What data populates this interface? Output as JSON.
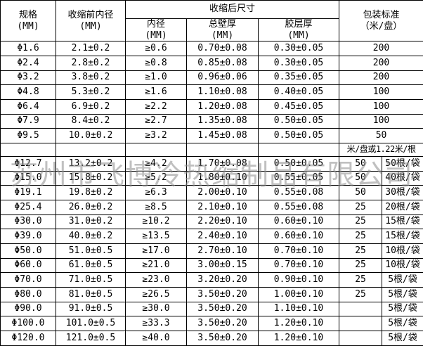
{
  "watermark": "苏州市飞博冷热缩制品有限公司",
  "table": {
    "headers": {
      "spec": {
        "line1": "规格",
        "line2": "(MM)"
      },
      "pre": {
        "line1": "收缩前内径",
        "line2": "(MM)"
      },
      "group": "收缩后尺寸",
      "inner": {
        "line1": "内径",
        "line2": "(MM)"
      },
      "wall": {
        "line1": "总壁厚",
        "line2": "(MM)"
      },
      "glue": {
        "line1": "胶层厚",
        "line2": "(MM)"
      },
      "pack": {
        "line1": "包装标准",
        "line2": "（米/盘）"
      }
    },
    "body_rows": [
      {
        "cells": [
          {
            "t": "Φ1.6"
          },
          {
            "t": "2.1±0.2"
          },
          {
            "t": "≥0.6"
          },
          {
            "t": "0.70±0.08"
          },
          {
            "t": "0.30±0.05"
          },
          {
            "t": "200",
            "span": 2
          }
        ]
      },
      {
        "cells": [
          {
            "t": "Φ2.4"
          },
          {
            "t": "2.8±0.2"
          },
          {
            "t": "≥0.8"
          },
          {
            "t": "0.85±0.08"
          },
          {
            "t": "0.30±0.05"
          },
          {
            "t": "200",
            "span": 2
          }
        ]
      },
      {
        "cells": [
          {
            "t": "Φ3.2"
          },
          {
            "t": "3.8±0.2"
          },
          {
            "t": "≥1.0"
          },
          {
            "t": "0.96±0.06"
          },
          {
            "t": "0.35±0.05"
          },
          {
            "t": "200",
            "span": 2
          }
        ]
      },
      {
        "cells": [
          {
            "t": "Φ4.8"
          },
          {
            "t": "5.3±0.2"
          },
          {
            "t": "≥1.6"
          },
          {
            "t": "1.10±0.08"
          },
          {
            "t": "0.40±0.05"
          },
          {
            "t": "100",
            "span": 2
          }
        ]
      },
      {
        "cells": [
          {
            "t": "Φ6.4"
          },
          {
            "t": "6.9±0.2"
          },
          {
            "t": "≥2.2"
          },
          {
            "t": "1.20±0.08"
          },
          {
            "t": "0.45±0.05"
          },
          {
            "t": "100",
            "span": 2
          }
        ]
      },
      {
        "cells": [
          {
            "t": "Φ7.9"
          },
          {
            "t": "8.4±0.2"
          },
          {
            "t": "≥2.7"
          },
          {
            "t": "1.35±0.08"
          },
          {
            "t": "0.50±0.05"
          },
          {
            "t": "100",
            "span": 2
          }
        ]
      },
      {
        "cells": [
          {
            "t": "Φ9.5"
          },
          {
            "t": "10.0±0.2"
          },
          {
            "t": "≥3.2"
          },
          {
            "t": "1.45±0.08"
          },
          {
            "t": "0.50±0.05"
          },
          {
            "t": "50",
            "span": 2
          }
        ]
      },
      {
        "cells": [
          {
            "t": ""
          },
          {
            "t": ""
          },
          {
            "t": ""
          },
          {
            "t": ""
          },
          {
            "t": ""
          },
          {
            "t": "米/盘或1.22米/根",
            "span": 2,
            "cls": "note"
          }
        ]
      },
      {
        "cells": [
          {
            "t": "Φ12.7"
          },
          {
            "t": "13.2±0.2"
          },
          {
            "t": "≥4.2"
          },
          {
            "t": "1.70±0.08"
          },
          {
            "t": "0.50±0.05"
          },
          {
            "t": "50"
          },
          {
            "t": "50根/袋"
          }
        ]
      },
      {
        "cells": [
          {
            "t": "Φ15.0"
          },
          {
            "t": "15.8±0.2"
          },
          {
            "t": "≥5.2"
          },
          {
            "t": "1.80±0.10"
          },
          {
            "t": "0.55±0.05"
          },
          {
            "t": "50"
          },
          {
            "t": "40根/袋"
          }
        ]
      },
      {
        "cells": [
          {
            "t": "Φ19.1"
          },
          {
            "t": "19.8±0.2"
          },
          {
            "t": "≥6.3"
          },
          {
            "t": "2.00±0.10"
          },
          {
            "t": "0.55±0.08"
          },
          {
            "t": "50"
          },
          {
            "t": "30根/袋"
          }
        ]
      },
      {
        "cells": [
          {
            "t": "Φ25.4"
          },
          {
            "t": "26.0±0.2"
          },
          {
            "t": "≥8.5"
          },
          {
            "t": "2.10±0.10"
          },
          {
            "t": "0.55±0.08"
          },
          {
            "t": "25"
          },
          {
            "t": "20根/袋"
          }
        ]
      },
      {
        "cells": [
          {
            "t": "Φ30.0"
          },
          {
            "t": "31.0±0.2"
          },
          {
            "t": "≥10.2"
          },
          {
            "t": "2.20±0.10"
          },
          {
            "t": "0.60±0.10"
          },
          {
            "t": "25"
          },
          {
            "t": "15根/袋"
          }
        ]
      },
      {
        "cells": [
          {
            "t": "Φ39.0"
          },
          {
            "t": "40.0±0.2"
          },
          {
            "t": "≥13.5"
          },
          {
            "t": "2.40±0.10"
          },
          {
            "t": "0.60±0.10"
          },
          {
            "t": "25"
          },
          {
            "t": "15根/袋"
          }
        ]
      },
      {
        "cells": [
          {
            "t": "Φ50.0"
          },
          {
            "t": "51.0±0.5"
          },
          {
            "t": "≥17.0"
          },
          {
            "t": "2.70±0.10"
          },
          {
            "t": "0.70±0.10"
          },
          {
            "t": "25"
          },
          {
            "t": "10根/袋"
          }
        ]
      },
      {
        "cells": [
          {
            "t": "Φ60.0"
          },
          {
            "t": "61.0±0.5"
          },
          {
            "t": "≥21.0"
          },
          {
            "t": "3.00±0.15"
          },
          {
            "t": "0.70±0.10"
          },
          {
            "t": "25"
          },
          {
            "t": "10根/袋"
          }
        ]
      },
      {
        "cells": [
          {
            "t": "Φ70.0"
          },
          {
            "t": "71.0±0.5"
          },
          {
            "t": "≥23.0"
          },
          {
            "t": "3.20±0.20"
          },
          {
            "t": "0.90±0.10"
          },
          {
            "t": "25"
          },
          {
            "t": "5根/袋"
          }
        ]
      },
      {
        "cells": [
          {
            "t": "Φ80.0"
          },
          {
            "t": "81.0±0.5"
          },
          {
            "t": "≥26.5"
          },
          {
            "t": "3.50±0.20"
          },
          {
            "t": "1.00±0.10"
          },
          {
            "t": "25"
          },
          {
            "t": "5根/袋"
          }
        ]
      },
      {
        "cells": [
          {
            "t": "Φ90.0"
          },
          {
            "t": "91.0±0.5"
          },
          {
            "t": "≥30.0"
          },
          {
            "t": "3.50±0.20"
          },
          {
            "t": "1.10±0.10"
          },
          {
            "t": ""
          },
          {
            "t": "5根/袋"
          }
        ]
      },
      {
        "cells": [
          {
            "t": "Φ100.0"
          },
          {
            "t": "101.0±0.5"
          },
          {
            "t": "≥33.3"
          },
          {
            "t": "3.50±0.20"
          },
          {
            "t": "1.20±0.10"
          },
          {
            "t": ""
          },
          {
            "t": "5根/袋"
          }
        ]
      },
      {
        "cells": [
          {
            "t": "Φ120.0"
          },
          {
            "t": "121.0±0.5"
          },
          {
            "t": "≥40.0"
          },
          {
            "t": "3.50±0.20"
          },
          {
            "t": "1.20±0.10"
          },
          {
            "t": ""
          },
          {
            "t": "5根/袋"
          }
        ]
      }
    ]
  }
}
